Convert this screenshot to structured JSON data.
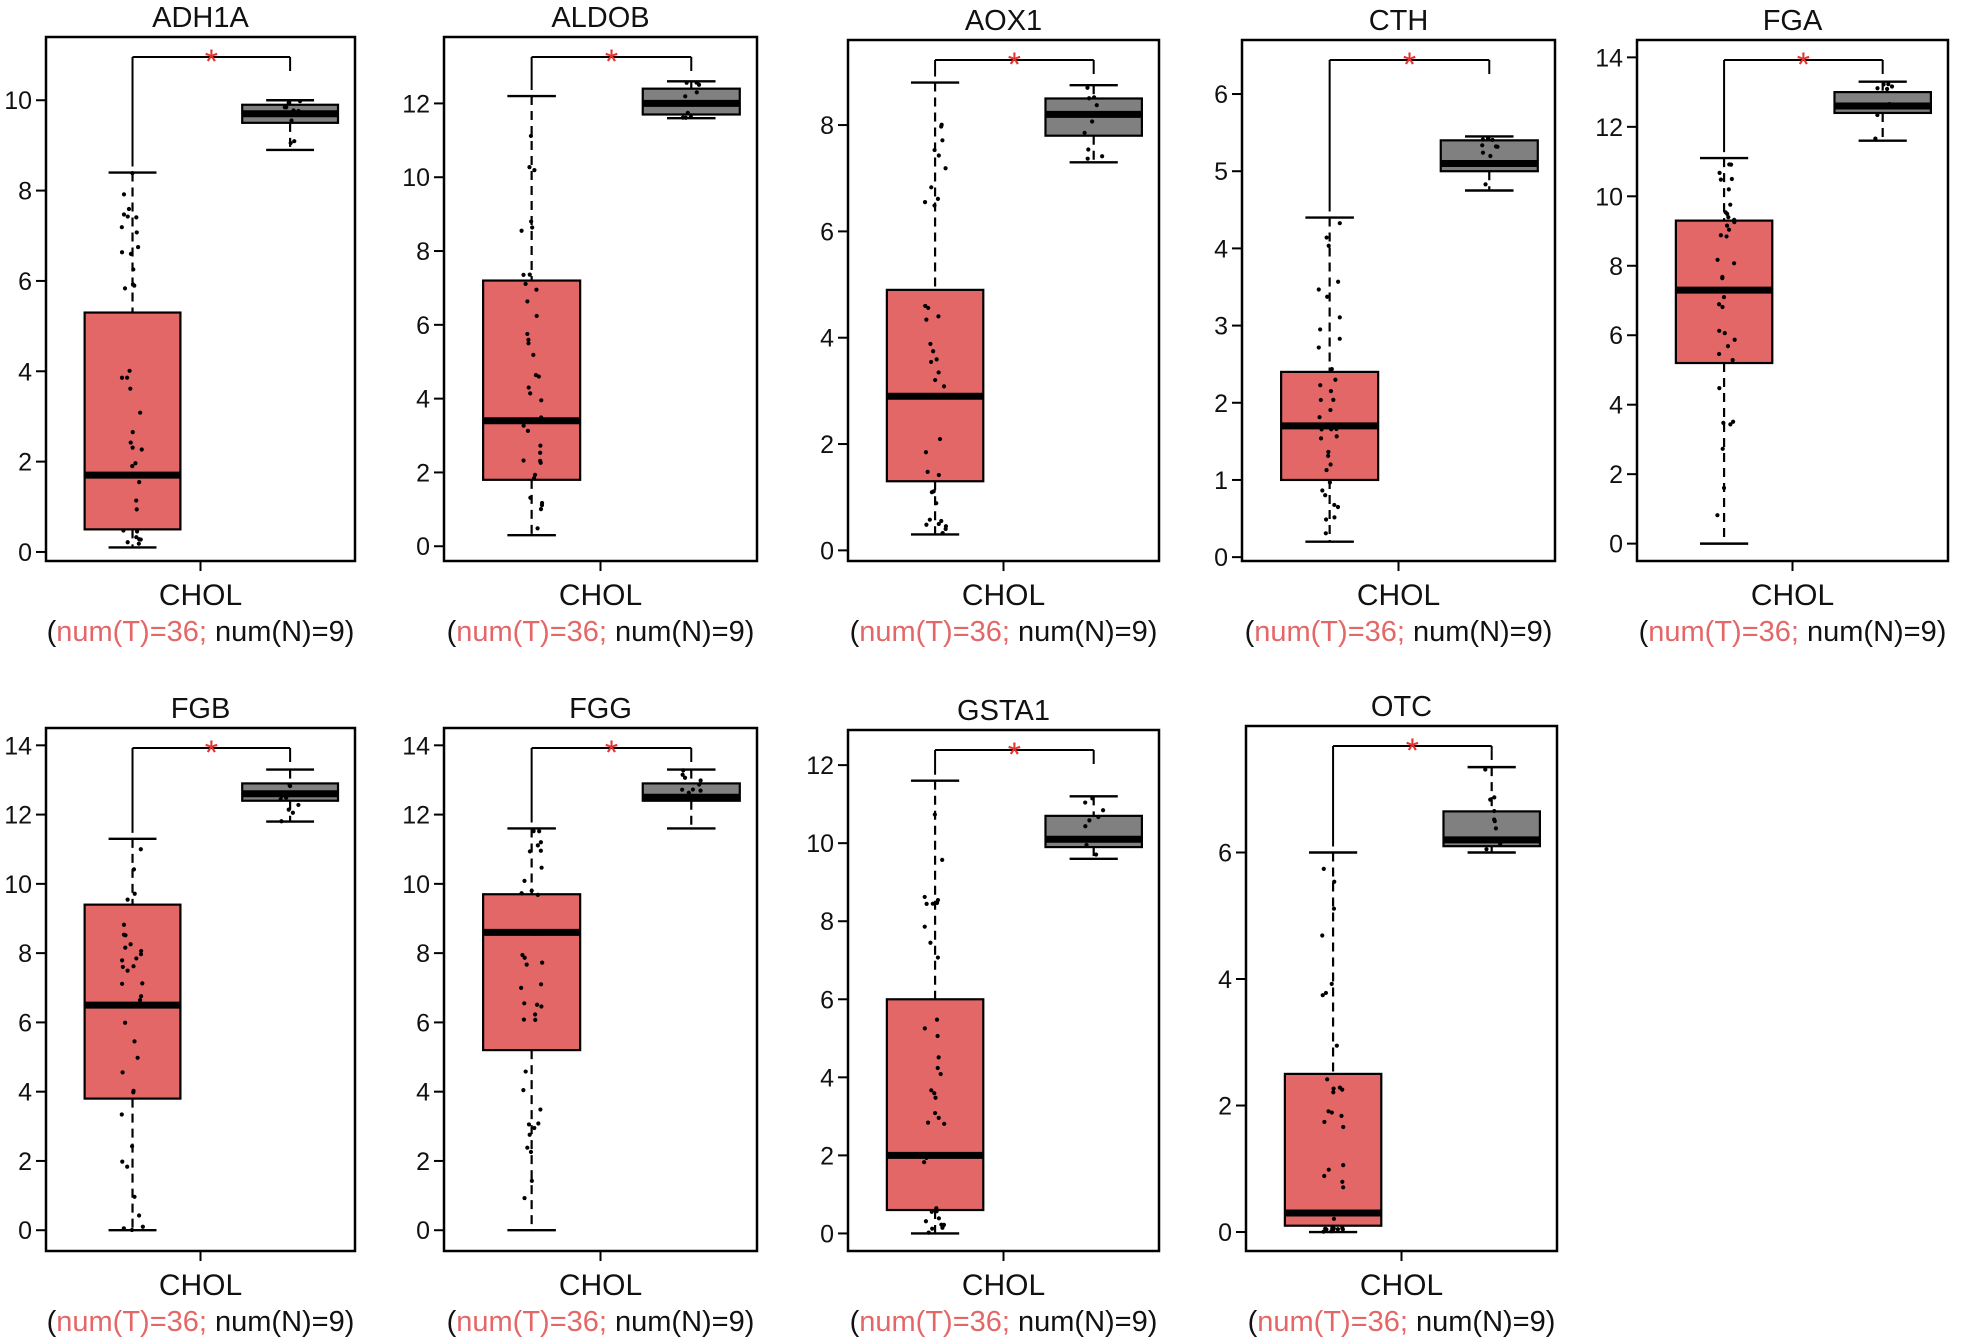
{
  "colors": {
    "tumor": "#e46767",
    "normal": "#808080",
    "star": "#e8302c",
    "num_t": "#e46767",
    "text": "#111111"
  },
  "chart_data": [
    {
      "type": "box",
      "title": "ADH1A",
      "xlabel": "CHOL",
      "n_label_open": "(",
      "n_label_t": "num(T)=36;",
      "n_label_n": "num(N)=9)",
      "significance": "*",
      "ylim": [
        -0.2,
        11.4
      ],
      "yticks": [
        "0",
        "2",
        "4",
        "6",
        "8",
        "10"
      ],
      "yticks_val": [
        0,
        2,
        4,
        6,
        8,
        10
      ],
      "tumor": {
        "min": 0.1,
        "q1": 0.5,
        "median": 1.7,
        "q3": 5.3,
        "max": 8.4
      },
      "normal": {
        "min": 8.9,
        "q1": 9.5,
        "median": 9.7,
        "q3": 9.9,
        "max": 10.0
      }
    },
    {
      "type": "box",
      "title": "ALDOB",
      "xlabel": "CHOL",
      "n_label_open": "(",
      "n_label_t": "num(T)=36;",
      "n_label_n": "num(N)=9)",
      "significance": "*",
      "ylim": [
        -0.4,
        13.8
      ],
      "yticks": [
        "0",
        "2",
        "4",
        "6",
        "8",
        "10",
        "12"
      ],
      "yticks_val": [
        0,
        2,
        4,
        6,
        8,
        10,
        12
      ],
      "tumor": {
        "min": 0.3,
        "q1": 1.8,
        "median": 3.4,
        "q3": 7.2,
        "max": 12.2
      },
      "normal": {
        "min": 11.6,
        "q1": 11.7,
        "median": 12.0,
        "q3": 12.4,
        "max": 12.6
      }
    },
    {
      "type": "box",
      "title": "AOX1",
      "xlabel": "CHOL",
      "n_label_open": "(",
      "n_label_t": "num(T)=36;",
      "n_label_n": "num(N)=9)",
      "significance": "*",
      "ylim": [
        -0.2,
        9.6
      ],
      "yticks": [
        "0",
        "2",
        "4",
        "6",
        "8"
      ],
      "yticks_val": [
        0,
        2,
        4,
        6,
        8
      ],
      "tumor": {
        "min": 0.3,
        "q1": 1.3,
        "median": 2.9,
        "q3": 4.9,
        "max": 8.8
      },
      "normal": {
        "min": 7.3,
        "q1": 7.8,
        "median": 8.2,
        "q3": 8.5,
        "max": 8.75
      }
    },
    {
      "type": "box",
      "title": "CTH",
      "xlabel": "CHOL",
      "n_label_open": "(",
      "n_label_t": "num(T)=36;",
      "n_label_n": "num(N)=9)",
      "significance": "*",
      "ylim": [
        -0.05,
        6.7
      ],
      "yticks": [
        "0",
        "1",
        "2",
        "3",
        "4",
        "5",
        "6"
      ],
      "yticks_val": [
        0,
        1,
        2,
        3,
        4,
        5,
        6
      ],
      "tumor": {
        "min": 0.2,
        "q1": 1.0,
        "median": 1.7,
        "q3": 2.4,
        "max": 4.4
      },
      "normal": {
        "min": 4.75,
        "q1": 5.0,
        "median": 5.1,
        "q3": 5.4,
        "max": 5.45
      }
    },
    {
      "type": "box",
      "title": "FGA",
      "xlabel": "CHOL",
      "n_label_open": "(",
      "n_label_t": "num(T)=36;",
      "n_label_n": "num(N)=9)",
      "significance": "*",
      "ylim": [
        -0.5,
        14.5
      ],
      "yticks": [
        "0",
        "2",
        "4",
        "6",
        "8",
        "10",
        "12",
        "14"
      ],
      "yticks_val": [
        0,
        2,
        4,
        6,
        8,
        10,
        12,
        14
      ],
      "tumor": {
        "min": 0.0,
        "q1": 5.2,
        "median": 7.3,
        "q3": 9.3,
        "max": 11.1
      },
      "normal": {
        "min": 11.6,
        "q1": 12.4,
        "median": 12.6,
        "q3": 13.0,
        "max": 13.3
      }
    },
    {
      "type": "box",
      "title": "FGB",
      "xlabel": "CHOL",
      "n_label_open": "(",
      "n_label_t": "num(T)=36;",
      "n_label_n": "num(N)=9)",
      "significance": "*",
      "ylim": [
        -0.6,
        14.5
      ],
      "yticks": [
        "0",
        "2",
        "4",
        "6",
        "8",
        "10",
        "12",
        "14"
      ],
      "yticks_val": [
        0,
        2,
        4,
        6,
        8,
        10,
        12,
        14
      ],
      "tumor": {
        "min": 0.0,
        "q1": 3.8,
        "median": 6.5,
        "q3": 9.4,
        "max": 11.3
      },
      "normal": {
        "min": 11.8,
        "q1": 12.4,
        "median": 12.6,
        "q3": 12.9,
        "max": 13.3
      }
    },
    {
      "type": "box",
      "title": "FGG",
      "xlabel": "CHOL",
      "n_label_open": "(",
      "n_label_t": "num(T)=36;",
      "n_label_n": "num(N)=9)",
      "significance": "*",
      "ylim": [
        -0.6,
        14.5
      ],
      "yticks": [
        "0",
        "2",
        "4",
        "6",
        "8",
        "10",
        "12",
        "14"
      ],
      "yticks_val": [
        0,
        2,
        4,
        6,
        8,
        10,
        12,
        14
      ],
      "tumor": {
        "min": 0.0,
        "q1": 5.2,
        "median": 8.6,
        "q3": 9.7,
        "max": 11.6
      },
      "normal": {
        "min": 11.6,
        "q1": 12.4,
        "median": 12.5,
        "q3": 12.9,
        "max": 13.3
      }
    },
    {
      "type": "box",
      "title": "GSTA1",
      "xlabel": "CHOL",
      "n_label_open": "(",
      "n_label_t": "num(T)=36;",
      "n_label_n": "num(N)=9)",
      "significance": "*",
      "ylim": [
        -0.45,
        12.9
      ],
      "yticks": [
        "0",
        "2",
        "4",
        "6",
        "8",
        "10",
        "12"
      ],
      "yticks_val": [
        0,
        2,
        4,
        6,
        8,
        10,
        12
      ],
      "tumor": {
        "min": 0.0,
        "q1": 0.6,
        "median": 2.0,
        "q3": 6.0,
        "max": 11.6
      },
      "normal": {
        "min": 9.6,
        "q1": 9.9,
        "median": 10.1,
        "q3": 10.7,
        "max": 11.2
      }
    },
    {
      "type": "box",
      "title": "OTC",
      "xlabel": "CHOL",
      "n_label_open": "(",
      "n_label_t": "num(T)=36;",
      "n_label_n": "num(N)=9)",
      "significance": "*",
      "ylim": [
        -0.3,
        8.0
      ],
      "yticks": [
        "0",
        "2",
        "4",
        "6"
      ],
      "yticks_val": [
        0,
        2,
        4,
        6
      ],
      "tumor": {
        "min": 0.0,
        "q1": 0.1,
        "median": 0.3,
        "q3": 2.5,
        "max": 6.0
      },
      "normal": {
        "min": 6.0,
        "q1": 6.1,
        "median": 6.2,
        "q3": 6.65,
        "max": 7.35
      }
    }
  ]
}
